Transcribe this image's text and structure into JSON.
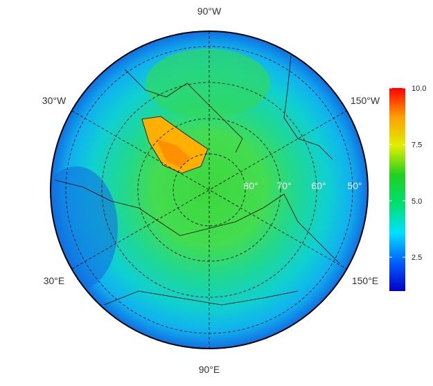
{
  "map": {
    "longitude_labels": [
      "90°W",
      "30°W",
      "150°W",
      "30°E",
      "150°E",
      "90°E"
    ],
    "latitude_labels": [
      "80°",
      "70°",
      "60°",
      "50°"
    ]
  },
  "colorbar": {
    "lim": [
      1,
      10
    ],
    "ticks": [
      2.5,
      {
        "value": 5,
        "label": "5.0"
      },
      7.5,
      {
        "value": 10,
        "label": "10.0"
      }
    ],
    "colors": [
      "#0000c8",
      "#0060ff",
      "#00e0ff",
      "#00e070",
      "#20d020",
      "#e0f000",
      "#ffa000",
      "#ff0000"
    ]
  }
}
